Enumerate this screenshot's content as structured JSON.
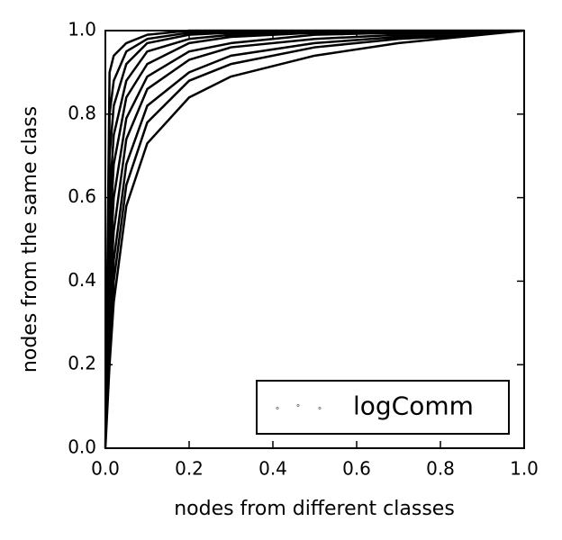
{
  "chart_data": {
    "type": "line",
    "xlabel": "nodes from different classes",
    "ylabel": "nodes from the same class",
    "xlim": [
      0,
      1
    ],
    "ylim": [
      0,
      1
    ],
    "xticks": [
      {
        "value": 0,
        "label": "0.0"
      },
      0.2,
      0.4,
      0.6,
      0.8,
      {
        "value": 1,
        "label": "1.0"
      }
    ],
    "yticks": [
      {
        "value": 0,
        "label": "0.0"
      },
      0.2,
      0.4,
      0.6,
      0.8,
      {
        "value": 1,
        "label": "1.0"
      }
    ],
    "legend": "lower right",
    "series": [
      {
        "name": "logComm",
        "color": "#000000",
        "x": [
          0,
          0.01,
          0.02,
          0.05,
          0.1,
          0.2,
          0.3,
          0.5,
          0.7,
          0.9,
          1,
          null,
          0,
          0.01,
          0.02,
          0.05,
          0.1,
          0.2,
          0.3,
          0.5,
          0.7,
          0.9,
          1,
          null,
          0,
          0.01,
          0.02,
          0.05,
          0.1,
          0.2,
          0.3,
          0.5,
          0.7,
          0.9,
          1,
          null,
          0,
          0.01,
          0.02,
          0.05,
          0.1,
          0.2,
          0.3,
          0.5,
          0.7,
          0.9,
          1,
          null,
          0,
          0.01,
          0.02,
          0.05,
          0.1,
          0.2,
          0.3,
          0.5,
          0.7,
          0.9,
          1,
          null,
          0,
          0.01,
          0.02,
          0.05,
          0.1,
          0.2,
          0.3,
          0.5,
          0.7,
          0.9,
          1,
          null,
          0,
          0.01,
          0.02,
          0.05,
          0.1,
          0.2,
          0.3,
          0.5,
          0.7,
          0.9,
          1,
          null,
          0,
          0.01,
          0.02,
          0.05,
          0.1,
          0.2,
          0.3,
          0.5,
          0.7,
          0.9,
          1,
          null,
          0,
          0.01,
          0.02,
          0.05,
          0.1,
          0.2,
          0.3,
          0.5,
          0.7,
          0.9,
          1,
          null,
          0,
          0.01,
          0.02,
          0.05,
          0.1,
          0.2,
          0.3,
          0.5,
          0.7,
          0.9,
          1
        ],
        "values": [
          0,
          0.9,
          0.94,
          0.97,
          0.99,
          1,
          1,
          1,
          1,
          1,
          1,
          null,
          0,
          0.8,
          0.88,
          0.95,
          0.98,
          0.995,
          1,
          1,
          1,
          1,
          1,
          null,
          0,
          0.7,
          0.82,
          0.92,
          0.97,
          0.99,
          0.995,
          1,
          1,
          1,
          1,
          null,
          0,
          0.6,
          0.75,
          0.88,
          0.95,
          0.98,
          0.99,
          1,
          1,
          1,
          1,
          null,
          0,
          0.5,
          0.68,
          0.84,
          0.92,
          0.97,
          0.985,
          0.995,
          1,
          1,
          1,
          null,
          0,
          0.42,
          0.6,
          0.79,
          0.89,
          0.95,
          0.97,
          0.99,
          0.995,
          1,
          1,
          null,
          0,
          0.35,
          0.52,
          0.74,
          0.86,
          0.93,
          0.96,
          0.98,
          0.99,
          1,
          1,
          null,
          0,
          0.3,
          0.45,
          0.68,
          0.82,
          0.9,
          0.94,
          0.97,
          0.985,
          0.995,
          1,
          null,
          0,
          0.25,
          0.4,
          0.63,
          0.78,
          0.88,
          0.92,
          0.96,
          0.98,
          0.99,
          1,
          null,
          0,
          0.2,
          0.35,
          0.58,
          0.73,
          0.84,
          0.89,
          0.94,
          0.97,
          0.99,
          1
        ]
      }
    ]
  }
}
